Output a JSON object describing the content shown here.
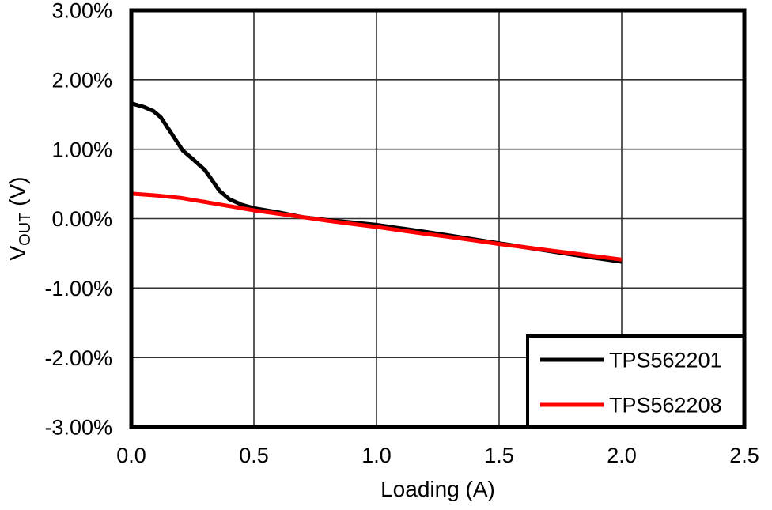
{
  "chart_data": {
    "type": "line",
    "title": "",
    "xlabel": "Loading (A)",
    "ylabel": {
      "base": "V",
      "subscript": "OUT",
      "suffix": " (V)"
    },
    "xlim": [
      0,
      2.5
    ],
    "ylim": [
      -3,
      3
    ],
    "grid": true,
    "legend_position": "bottom-right",
    "xticks": {
      "values": [
        0,
        0.5,
        1.0,
        1.5,
        2.0,
        2.5
      ],
      "labels": [
        "0.0",
        "0.5",
        "1.0",
        "1.5",
        "2.0",
        "2.5"
      ]
    },
    "yticks": {
      "values": [
        3,
        2,
        1,
        0,
        -1,
        -2,
        -3
      ],
      "labels": [
        "3.00%",
        "2.00%",
        "1.00%",
        "0.00%",
        "-1.00%",
        "-2.00%",
        "-3.00%"
      ]
    },
    "series": [
      {
        "name": "TPS562201",
        "color": "#000000",
        "points": [
          [
            0.0,
            1.66
          ],
          [
            0.05,
            1.61
          ],
          [
            0.09,
            1.55
          ],
          [
            0.12,
            1.46
          ],
          [
            0.15,
            1.3
          ],
          [
            0.18,
            1.14
          ],
          [
            0.21,
            0.98
          ],
          [
            0.25,
            0.86
          ],
          [
            0.3,
            0.7
          ],
          [
            0.33,
            0.55
          ],
          [
            0.36,
            0.4
          ],
          [
            0.4,
            0.28
          ],
          [
            0.45,
            0.2
          ],
          [
            0.5,
            0.15
          ],
          [
            0.6,
            0.09
          ],
          [
            0.7,
            0.02
          ],
          [
            0.8,
            -0.02
          ],
          [
            0.9,
            -0.055
          ],
          [
            1.0,
            -0.09
          ],
          [
            1.1,
            -0.14
          ],
          [
            1.2,
            -0.19
          ],
          [
            1.3,
            -0.245
          ],
          [
            1.4,
            -0.3
          ],
          [
            1.5,
            -0.355
          ],
          [
            1.6,
            -0.41
          ],
          [
            1.7,
            -0.465
          ],
          [
            1.8,
            -0.52
          ],
          [
            1.9,
            -0.57
          ],
          [
            2.0,
            -0.62
          ]
        ]
      },
      {
        "name": "TPS562208",
        "color": "#ff0000",
        "points": [
          [
            0.0,
            0.36
          ],
          [
            0.1,
            0.335
          ],
          [
            0.2,
            0.3
          ],
          [
            0.25,
            0.27
          ],
          [
            0.3,
            0.24
          ],
          [
            0.4,
            0.18
          ],
          [
            0.5,
            0.12
          ],
          [
            0.6,
            0.07
          ],
          [
            0.7,
            0.02
          ],
          [
            0.8,
            -0.03
          ],
          [
            0.9,
            -0.075
          ],
          [
            1.0,
            -0.12
          ],
          [
            1.1,
            -0.17
          ],
          [
            1.2,
            -0.22
          ],
          [
            1.3,
            -0.265
          ],
          [
            1.4,
            -0.315
          ],
          [
            1.5,
            -0.365
          ],
          [
            1.6,
            -0.41
          ],
          [
            1.7,
            -0.455
          ],
          [
            1.8,
            -0.5
          ],
          [
            1.9,
            -0.545
          ],
          [
            2.0,
            -0.59
          ]
        ]
      }
    ]
  },
  "colors": {
    "background": "#ffffff",
    "axis": "#000000",
    "grid": "#303030",
    "text": "#000000"
  }
}
